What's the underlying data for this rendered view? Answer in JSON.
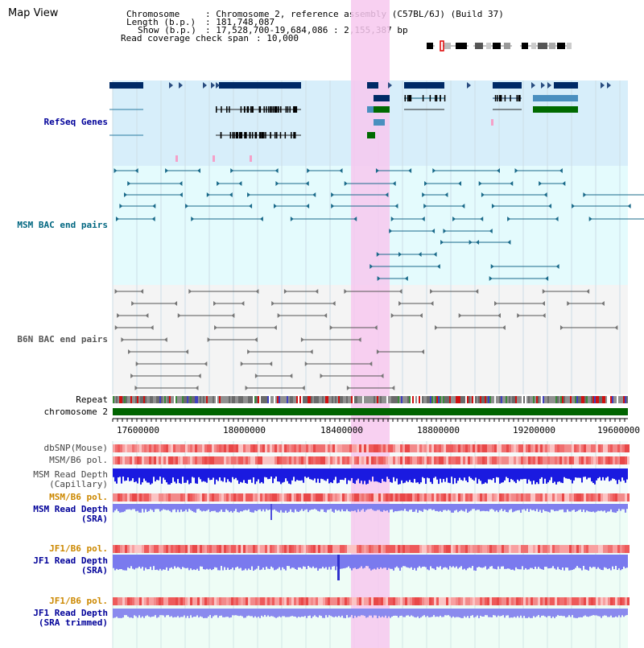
{
  "page_title": "Map View",
  "info": {
    "chromosome_key": "Chromosome",
    "chromosome_val": ": Chromosome 2, reference assembly (C57BL/6J) (Build 37)",
    "length_key": "Length (b.p.)",
    "length_val": ": 181,748,087",
    "show_key": "Show (b.p.)",
    "show_val": ": 17,528,700-19,684,086 : 2,155,387 bp",
    "coverage_key": "Read coverage check span",
    "coverage_val": ": 10,000"
  },
  "tracks": {
    "refseq": "RefSeq Genes",
    "msm_bac": "MSM BAC end pairs",
    "b6n_bac": "B6N BAC end pairs",
    "repeat": "Repeat",
    "chromosome": "chromosome 2",
    "dbsnp": "dbSNP(Mouse)",
    "msm_b6_pol_1": "MSM/B6 pol.",
    "msm_read_depth_cap_1": "MSM Read Depth",
    "msm_read_depth_cap_2": "(Capillary)",
    "msm_b6_pol_2": "MSM/B6 pol.",
    "msm_read_depth_sra_1": "MSM Read Depth",
    "msm_read_depth_sra_2": "(SRA)",
    "jf1_b6_pol_1": "JF1/B6 pol.",
    "jf1_read_depth_sra_1": "JF1 Read Depth",
    "jf1_read_depth_sra_2": "(SRA)",
    "jf1_b6_pol_2": "JF1/B6 pol.",
    "jf1_read_depth_trim_1": "JF1 Read Depth",
    "jf1_read_depth_trim_2": "(SRA trimmed)"
  },
  "axis": {
    "ticks": [
      "17600000",
      "18000000",
      "18400000",
      "18800000",
      "19200000",
      "19600000"
    ]
  },
  "colors": {
    "refseq_label": "#000099",
    "msm_label": "#006680",
    "b6n_label": "#555555",
    "highlight": "#f7c8ee",
    "chromosome_bar": "#006400",
    "pol_orange": "#cc8800",
    "depth_blue": "#000099"
  }
}
